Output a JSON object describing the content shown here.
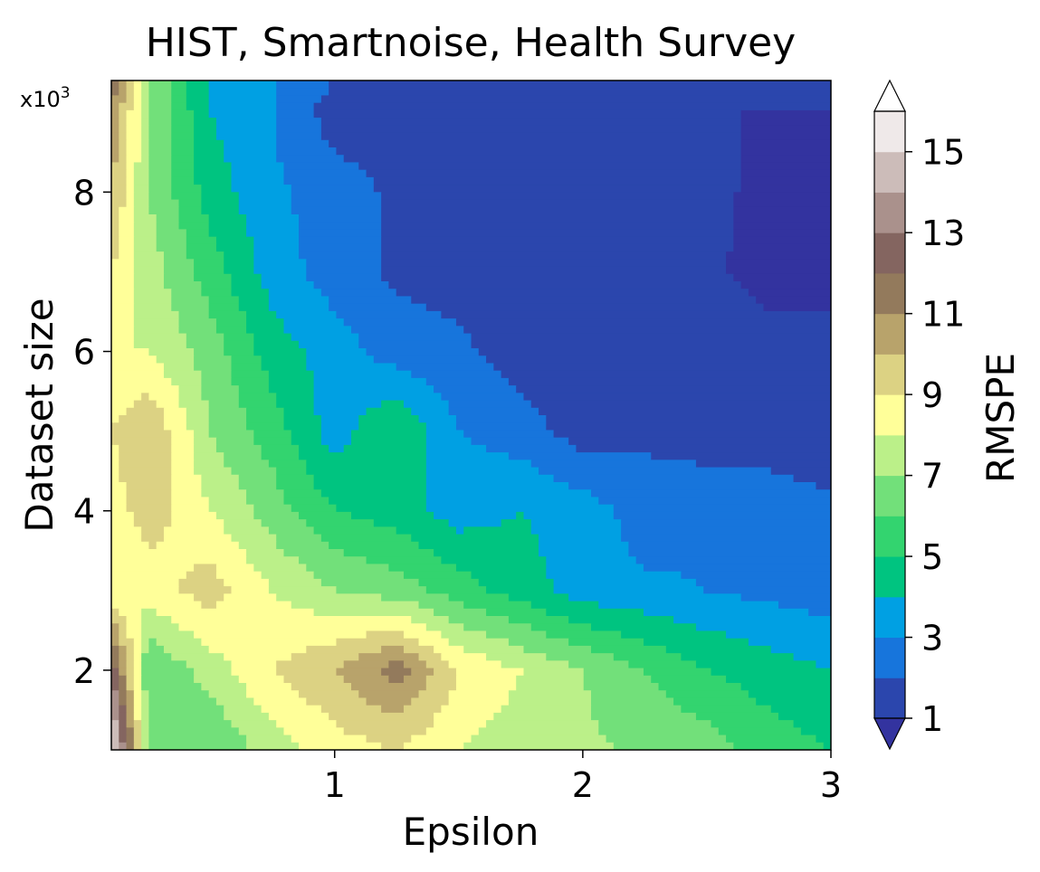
{
  "chart_data": {
    "type": "heatmap",
    "subtype": "filled-contour",
    "title": "HIST, Smartnoise, Health Survey",
    "xlabel": "Epsilon",
    "ylabel": "Dataset size",
    "y_multiplier_label": "x10",
    "y_multiplier_exponent": "3",
    "colorbar_label": "RMSPE",
    "xlim": [
      0.1,
      3
    ],
    "ylim": [
      1,
      9.4
    ],
    "x_ticks": [
      1,
      2,
      3
    ],
    "x_tick_labels": [
      "1",
      "2",
      "3"
    ],
    "y_ticks": [
      2,
      4,
      6,
      8
    ],
    "y_tick_labels": [
      "2",
      "4",
      "6",
      "8"
    ],
    "colorbar_range": [
      1,
      16
    ],
    "colorbar_ticks": [
      1,
      3,
      5,
      7,
      9,
      11,
      13,
      15
    ],
    "colorbar_tick_labels": [
      "1",
      "3",
      "5",
      "7",
      "9",
      "11",
      "13",
      "15"
    ],
    "colorbar_extend": "both",
    "levels": [
      1,
      2,
      3,
      4,
      5,
      6,
      7,
      8,
      9,
      10,
      11,
      12,
      13,
      14,
      15,
      16
    ],
    "band_colors": [
      "#2b46ad",
      "#1775dc",
      "#00a0e3",
      "#00c480",
      "#33d46f",
      "#72e07a",
      "#bbf089",
      "#ffff99",
      "#dcd283",
      "#b8a36b",
      "#937a5c",
      "#846560",
      "#aa918c",
      "#ccbcb9",
      "#efe9e9"
    ],
    "under_color": "#33339f",
    "over_color": "#ffffff",
    "x": [
      0.1,
      0.25,
      0.5,
      0.75,
      1,
      1.25,
      1.5,
      1.75,
      2,
      2.25,
      2.5,
      2.75,
      3
    ],
    "y": [
      1,
      2,
      3,
      4,
      5,
      6,
      7,
      8,
      9,
      9.4
    ],
    "z": [
      [
        16,
        7,
        6,
        7.5,
        8.5,
        9,
        8,
        7.5,
        7.2,
        6.8,
        6.5,
        5.5,
        5
      ],
      [
        13,
        6,
        7.5,
        9,
        10,
        11.5,
        9,
        8,
        7,
        6,
        5,
        4.5,
        4
      ],
      [
        8,
        8.5,
        9.5,
        8,
        7,
        6.5,
        5.5,
        4.5,
        3.5,
        3.2,
        3,
        2.7,
        2.5
      ],
      [
        8.5,
        9.5,
        8,
        6.5,
        5,
        4.5,
        3.5,
        4,
        3.5,
        2.5,
        2.7,
        2.5,
        2.3
      ],
      [
        9,
        10,
        7,
        5.5,
        3.5,
        5,
        3,
        2.5,
        1.5,
        1.8,
        1.5,
        1.5,
        1.2
      ],
      [
        8,
        8,
        6.5,
        4.5,
        3.5,
        2.5,
        2.2,
        1.5,
        1.3,
        1.5,
        1.4,
        1.2,
        1.1
      ],
      [
        9,
        7.5,
        5.5,
        3.5,
        2.5,
        1.8,
        1.6,
        1.5,
        1.3,
        1.2,
        1.1,
        0.8,
        0.9
      ],
      [
        10,
        7,
        4.5,
        3.2,
        2.5,
        1.8,
        1.5,
        1.3,
        1.2,
        1.1,
        1.1,
        0.9,
        1.0
      ],
      [
        11,
        7,
        4,
        3,
        1.5,
        1.5,
        1.3,
        1.2,
        1.1,
        1.1,
        1.0,
        1.0,
        1.0
      ],
      [
        12,
        7,
        4,
        3,
        2,
        1.5,
        1.4,
        1.3,
        1.2,
        1.1,
        1.1,
        1.0,
        1.0
      ]
    ]
  }
}
